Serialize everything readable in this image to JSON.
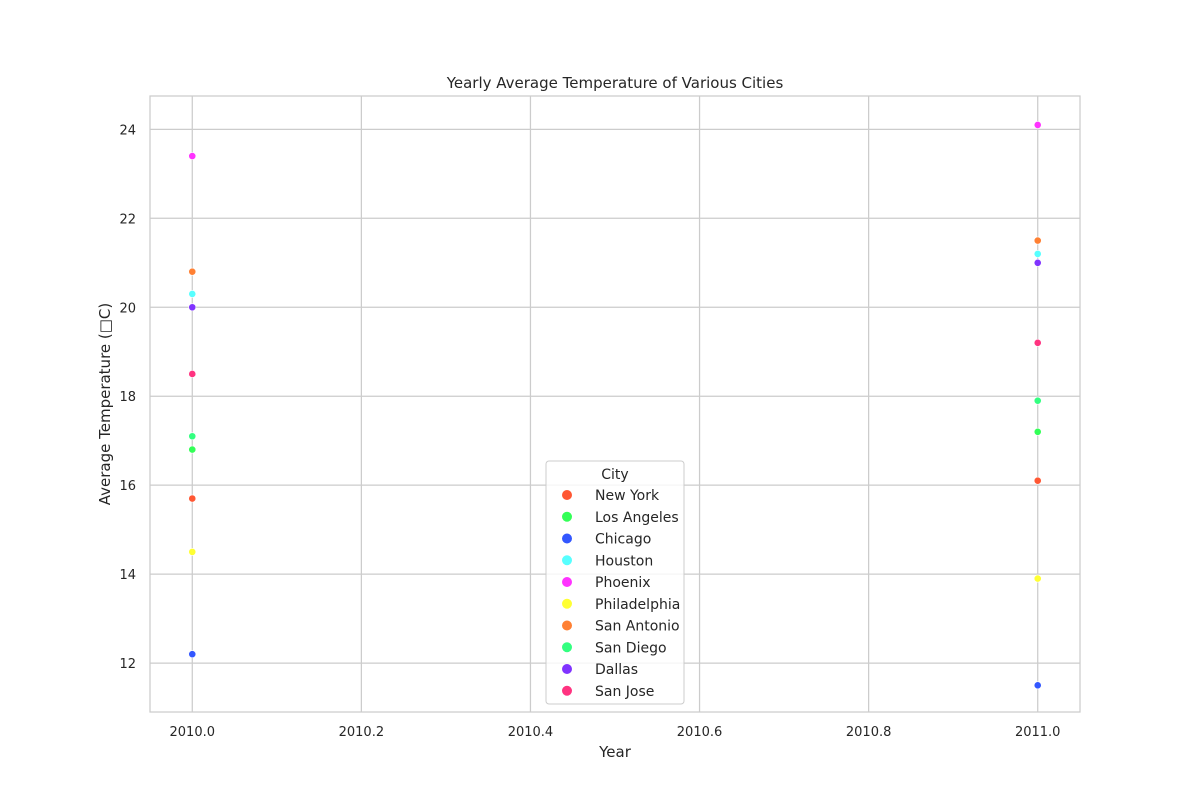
{
  "chart_data": {
    "type": "scatter",
    "title": "Yearly Average Temperature of Various Cities",
    "xlabel": "Year",
    "ylabel": "Average Temperature (□C)",
    "xlim": [
      2009.95,
      2011.05
    ],
    "ylim": [
      10.9,
      24.75
    ],
    "xticks": [
      2010.0,
      2010.2,
      2010.4,
      2010.6,
      2010.8,
      2011.0
    ],
    "xtick_labels": [
      "2010.0",
      "2010.2",
      "2010.4",
      "2010.6",
      "2010.8",
      "2011.0"
    ],
    "yticks": [
      12,
      14,
      16,
      18,
      20,
      22,
      24
    ],
    "ytick_labels": [
      "12",
      "14",
      "16",
      "18",
      "20",
      "22",
      "24"
    ],
    "grid": true,
    "legend": {
      "title": "City",
      "placement": "lower-center"
    },
    "series": [
      {
        "name": "New York",
        "color": "#ff5733",
        "points": [
          [
            2010,
            15.7
          ],
          [
            2011,
            16.1
          ]
        ]
      },
      {
        "name": "Los Angeles",
        "color": "#33ff57",
        "points": [
          [
            2010,
            16.8
          ],
          [
            2011,
            17.2
          ]
        ]
      },
      {
        "name": "Chicago",
        "color": "#3357ff",
        "points": [
          [
            2010,
            12.2
          ],
          [
            2011,
            11.5
          ]
        ]
      },
      {
        "name": "Houston",
        "color": "#57ffff",
        "points": [
          [
            2010,
            20.3
          ],
          [
            2011,
            21.2
          ]
        ]
      },
      {
        "name": "Phoenix",
        "color": "#ff33ff",
        "points": [
          [
            2010,
            23.4
          ],
          [
            2011,
            24.1
          ]
        ]
      },
      {
        "name": "Philadelphia",
        "color": "#ffff33",
        "points": [
          [
            2010,
            14.5
          ],
          [
            2011,
            13.9
          ]
        ]
      },
      {
        "name": "San Antonio",
        "color": "#ff8033",
        "points": [
          [
            2010,
            20.8
          ],
          [
            2011,
            21.5
          ]
        ]
      },
      {
        "name": "San Diego",
        "color": "#33ff80",
        "points": [
          [
            2010,
            17.1
          ],
          [
            2011,
            17.9
          ]
        ]
      },
      {
        "name": "Dallas",
        "color": "#8033ff",
        "points": [
          [
            2010,
            20.0
          ],
          [
            2011,
            21.0
          ]
        ]
      },
      {
        "name": "San Jose",
        "color": "#ff3380",
        "points": [
          [
            2010,
            18.5
          ],
          [
            2011,
            19.2
          ]
        ]
      }
    ]
  }
}
